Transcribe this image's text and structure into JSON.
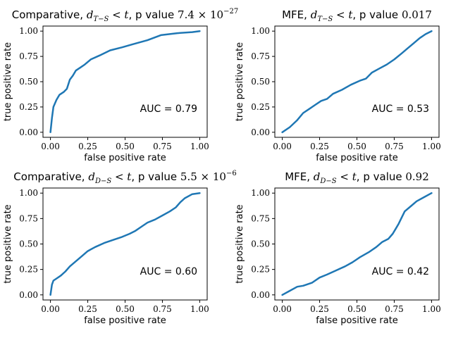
{
  "style": {
    "line_color": "#1f77b4"
  },
  "chart_data": [
    {
      "type": "line",
      "title_parts": [
        {
          "text": "Comparative, ",
          "kind": "plain"
        },
        {
          "text": "d",
          "kind": "math"
        },
        {
          "text": "T−S",
          "kind": "sub"
        },
        {
          "text": " < t",
          "kind": "math"
        },
        {
          "text": ", p value ",
          "kind": "plain"
        },
        {
          "text": "7.4 × 10",
          "kind": "num"
        },
        {
          "text": "−27",
          "kind": "sup"
        }
      ],
      "xlabel": "false positive rate",
      "ylabel": "true positive rate",
      "xlim": [
        -0.05,
        1.05
      ],
      "ylim": [
        -0.05,
        1.05
      ],
      "xticks": [
        0,
        0.25,
        0.5,
        0.75,
        1
      ],
      "xtick_labels": [
        "0.00",
        "0.25",
        "0.50",
        "0.75",
        "1.00"
      ],
      "yticks": [
        0,
        0.25,
        0.5,
        0.75,
        1
      ],
      "ytick_labels": [
        "0.00",
        "0.25",
        "0.50",
        "0.75",
        "1.00"
      ],
      "annotation": "AUC = 0.79",
      "x": [
        0,
        0.01,
        0.02,
        0.04,
        0.06,
        0.09,
        0.11,
        0.13,
        0.15,
        0.17,
        0.2,
        0.23,
        0.27,
        0.33,
        0.4,
        0.48,
        0.55,
        0.65,
        0.74,
        0.85,
        0.95,
        1.0
      ],
      "y": [
        0,
        0.14,
        0.25,
        0.32,
        0.37,
        0.4,
        0.43,
        0.52,
        0.56,
        0.61,
        0.64,
        0.67,
        0.72,
        0.76,
        0.81,
        0.84,
        0.87,
        0.91,
        0.96,
        0.98,
        0.99,
        1.0
      ]
    },
    {
      "type": "line",
      "title_parts": [
        {
          "text": "MFE, ",
          "kind": "plain"
        },
        {
          "text": "d",
          "kind": "math"
        },
        {
          "text": "T−S",
          "kind": "sub"
        },
        {
          "text": " < t",
          "kind": "math"
        },
        {
          "text": ", p value ",
          "kind": "plain"
        },
        {
          "text": "0.017",
          "kind": "num"
        }
      ],
      "xlabel": "false positive rate",
      "ylabel": "true positive rate",
      "xlim": [
        -0.05,
        1.05
      ],
      "ylim": [
        -0.05,
        1.05
      ],
      "xticks": [
        0,
        0.25,
        0.5,
        0.75,
        1
      ],
      "xtick_labels": [
        "0.00",
        "0.25",
        "0.50",
        "0.75",
        "1.00"
      ],
      "yticks": [
        0,
        0.25,
        0.5,
        0.75,
        1
      ],
      "ytick_labels": [
        "0.00",
        "0.25",
        "0.50",
        "0.75",
        "1.00"
      ],
      "annotation": "AUC = 0.53",
      "x": [
        0,
        0.05,
        0.1,
        0.14,
        0.18,
        0.22,
        0.26,
        0.3,
        0.34,
        0.4,
        0.46,
        0.52,
        0.56,
        0.6,
        0.65,
        0.7,
        0.75,
        0.8,
        0.84,
        0.88,
        0.92,
        0.96,
        1.0
      ],
      "y": [
        0,
        0.05,
        0.12,
        0.19,
        0.23,
        0.27,
        0.31,
        0.33,
        0.38,
        0.42,
        0.47,
        0.51,
        0.53,
        0.59,
        0.63,
        0.67,
        0.72,
        0.78,
        0.83,
        0.88,
        0.93,
        0.97,
        1.0
      ]
    },
    {
      "type": "line",
      "title_parts": [
        {
          "text": "Comparative, ",
          "kind": "plain"
        },
        {
          "text": "d",
          "kind": "math"
        },
        {
          "text": "D−S",
          "kind": "sub"
        },
        {
          "text": " < t",
          "kind": "math"
        },
        {
          "text": ", p value ",
          "kind": "plain"
        },
        {
          "text": "5.5 × 10",
          "kind": "num"
        },
        {
          "text": "−6",
          "kind": "sup"
        }
      ],
      "xlabel": "false positive rate",
      "ylabel": "true positive rate",
      "xlim": [
        -0.05,
        1.05
      ],
      "ylim": [
        -0.05,
        1.05
      ],
      "xticks": [
        0,
        0.25,
        0.5,
        0.75,
        1
      ],
      "xtick_labels": [
        "0.00",
        "0.25",
        "0.50",
        "0.75",
        "1.00"
      ],
      "yticks": [
        0,
        0.25,
        0.5,
        0.75,
        1
      ],
      "ytick_labels": [
        "0.00",
        "0.25",
        "0.50",
        "0.75",
        "1.00"
      ],
      "annotation": "AUC = 0.60",
      "x": [
        0,
        0.01,
        0.02,
        0.04,
        0.07,
        0.1,
        0.13,
        0.17,
        0.21,
        0.25,
        0.3,
        0.36,
        0.42,
        0.48,
        0.53,
        0.57,
        0.61,
        0.65,
        0.7,
        0.75,
        0.8,
        0.84,
        0.87,
        0.9,
        0.95,
        1.0
      ],
      "y": [
        0,
        0.1,
        0.14,
        0.16,
        0.19,
        0.23,
        0.28,
        0.33,
        0.38,
        0.43,
        0.47,
        0.51,
        0.54,
        0.57,
        0.6,
        0.63,
        0.67,
        0.71,
        0.74,
        0.78,
        0.82,
        0.86,
        0.91,
        0.95,
        0.99,
        1.0
      ]
    },
    {
      "type": "line",
      "title_parts": [
        {
          "text": "MFE, ",
          "kind": "plain"
        },
        {
          "text": "d",
          "kind": "math"
        },
        {
          "text": "D−S",
          "kind": "sub"
        },
        {
          "text": " < t",
          "kind": "math"
        },
        {
          "text": ", p value ",
          "kind": "plain"
        },
        {
          "text": "0.92",
          "kind": "num"
        }
      ],
      "xlabel": "false positive rate",
      "ylabel": "true positive rate",
      "xlim": [
        -0.05,
        1.05
      ],
      "ylim": [
        -0.05,
        1.05
      ],
      "xticks": [
        0,
        0.25,
        0.5,
        0.75,
        1
      ],
      "xtick_labels": [
        "0.00",
        "0.25",
        "0.50",
        "0.75",
        "1.00"
      ],
      "yticks": [
        0,
        0.25,
        0.5,
        0.75,
        1
      ],
      "ytick_labels": [
        "0.00",
        "0.25",
        "0.50",
        "0.75",
        "1.00"
      ],
      "annotation": "AUC = 0.42",
      "x": [
        0,
        0.05,
        0.1,
        0.14,
        0.2,
        0.25,
        0.3,
        0.36,
        0.42,
        0.47,
        0.52,
        0.58,
        0.63,
        0.67,
        0.71,
        0.74,
        0.76,
        0.78,
        0.8,
        0.82,
        0.86,
        0.9,
        0.95,
        1.0
      ],
      "y": [
        0,
        0.04,
        0.08,
        0.09,
        0.12,
        0.17,
        0.2,
        0.24,
        0.28,
        0.32,
        0.37,
        0.42,
        0.47,
        0.52,
        0.55,
        0.6,
        0.65,
        0.7,
        0.76,
        0.82,
        0.87,
        0.92,
        0.96,
        1.0
      ]
    }
  ]
}
